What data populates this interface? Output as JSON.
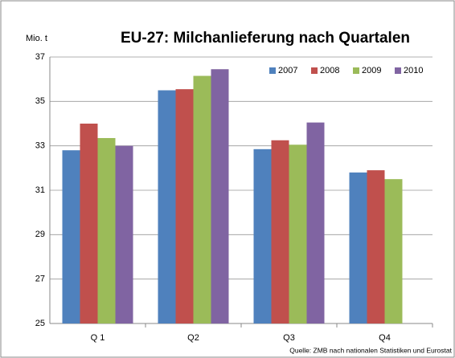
{
  "chart_data": {
    "type": "bar",
    "title": "EU-27: Milchanlieferung nach Quartalen",
    "y_label": "Mio. t",
    "source": "Quelle: ZMB nach nationalen Statistiken und Eurostat",
    "categories": [
      "Q 1",
      "Q2",
      "Q3",
      "Q4"
    ],
    "series": [
      {
        "name": "2007",
        "color": "#4f81bd",
        "values": [
          32.8,
          35.5,
          32.85,
          31.8
        ]
      },
      {
        "name": "2008",
        "color": "#c0504d",
        "values": [
          34.0,
          35.55,
          33.25,
          31.9
        ]
      },
      {
        "name": "2009",
        "color": "#9bbb59",
        "values": [
          33.35,
          36.15,
          33.05,
          31.5
        ]
      },
      {
        "name": "2010",
        "color": "#8064a2",
        "values": [
          33.0,
          36.45,
          34.05,
          null
        ]
      }
    ],
    "ylim": [
      25,
      37
    ],
    "yticks": [
      25,
      27,
      29,
      31,
      33,
      35,
      37
    ],
    "grid": true,
    "legend": "top-right"
  }
}
